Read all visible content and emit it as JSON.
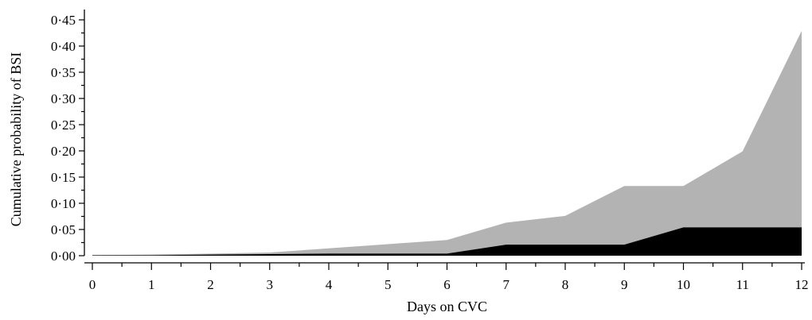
{
  "chart_data": {
    "type": "area",
    "xlabel": "Days on CVC",
    "ylabel": "Cumulative probability of BSI",
    "xlim": [
      0,
      12
    ],
    "ylim": [
      0,
      0.45
    ],
    "x": [
      0,
      1,
      2,
      3,
      4,
      5,
      6,
      7,
      8,
      9,
      10,
      11,
      12
    ],
    "x_tick_labels": [
      "0",
      "1",
      "2",
      "3",
      "4",
      "5",
      "6",
      "7",
      "8",
      "9",
      "10",
      "11",
      "12"
    ],
    "y_ticks": [
      0,
      0.05,
      0.1,
      0.15,
      0.2,
      0.25,
      0.3,
      0.35,
      0.4,
      0.45
    ],
    "y_tick_labels": [
      "0·00",
      "0·05",
      "0·10",
      "0·15",
      "0·20",
      "0·25",
      "0·30",
      "0·35",
      "0·40",
      "0·45"
    ],
    "grid": false,
    "series": [
      {
        "color": "#b3b3b3",
        "values": [
          0.001,
          0.002,
          0.004,
          0.006,
          0.014,
          0.022,
          0.03,
          0.063,
          0.076,
          0.133,
          0.133,
          0.199,
          0.429
        ]
      },
      {
        "color": "#000000",
        "values": [
          0.001,
          0.001,
          0.002,
          0.003,
          0.004,
          0.004,
          0.004,
          0.021,
          0.021,
          0.021,
          0.054,
          0.054,
          0.054
        ]
      }
    ]
  }
}
